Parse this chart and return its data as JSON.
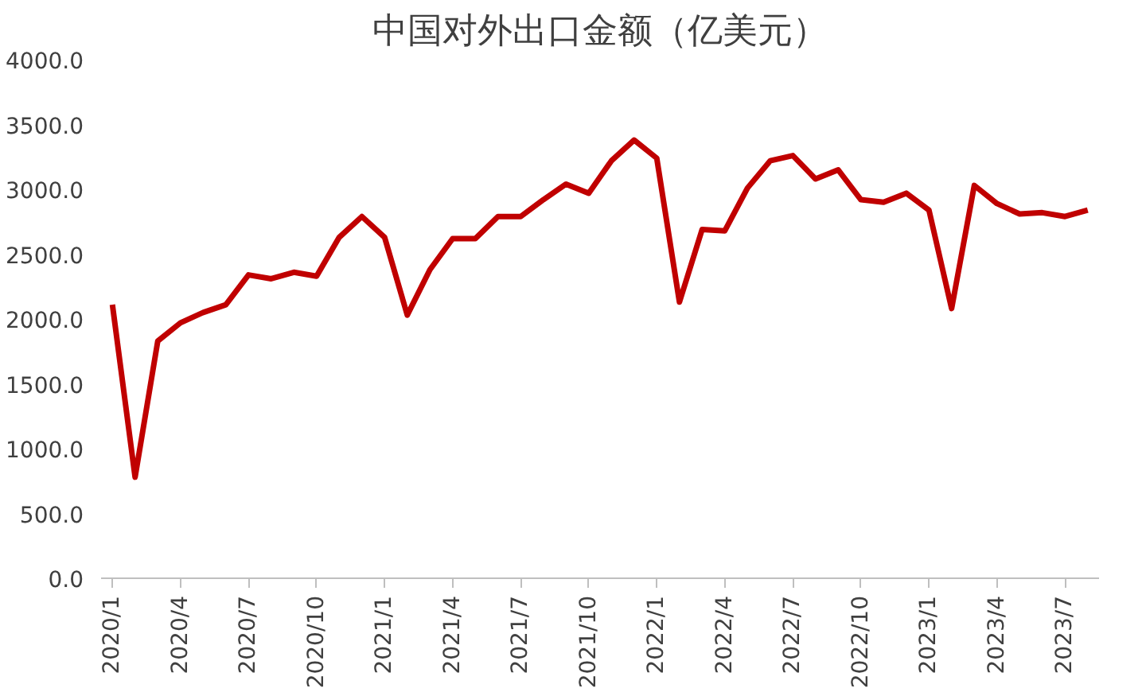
{
  "chart_data": {
    "type": "line",
    "title": "中国对外出口金额（亿美元）",
    "categories": [
      "2020/1",
      null,
      null,
      "2020/4",
      null,
      null,
      "2020/7",
      null,
      null,
      "2020/10",
      null,
      null,
      "2021/1",
      null,
      null,
      "2021/4",
      null,
      null,
      "2021/7",
      null,
      null,
      "2021/10",
      null,
      null,
      "2022/1",
      null,
      null,
      "2022/4",
      null,
      null,
      "2022/7",
      null,
      null,
      "2022/10",
      null,
      null,
      "2023/1",
      null,
      null,
      "2023/4",
      null,
      null,
      "2023/7",
      null
    ],
    "series": [
      {
        "color": "#c00000",
        "values": [
          2110,
          780,
          1830,
          1970,
          2050,
          2110,
          2340,
          2310,
          2360,
          2330,
          2630,
          2790,
          2630,
          2030,
          2380,
          2620,
          2620,
          2790,
          2790,
          2920,
          3040,
          2970,
          3220,
          3380,
          3240,
          2130,
          2690,
          2680,
          3010,
          3220,
          3260,
          3080,
          3150,
          2920,
          2900,
          2970,
          2840,
          2080,
          3030,
          2890,
          2810,
          2820,
          2790,
          2840
        ]
      }
    ],
    "ylim": [
      0,
      4000
    ],
    "yticks": [
      {
        "value": 0,
        "label": "0.0"
      },
      {
        "value": 500,
        "label": "500.0"
      },
      {
        "value": 1000,
        "label": "1000.0"
      },
      {
        "value": 1500,
        "label": "1500.0"
      },
      {
        "value": 2000,
        "label": "2000.0"
      },
      {
        "value": 2500,
        "label": "2500.0"
      },
      {
        "value": 3000,
        "label": "3000.0"
      },
      {
        "value": 3500,
        "label": "3500.0"
      },
      {
        "value": 4000,
        "label": "4000.0"
      }
    ],
    "grid": false,
    "marker": "none",
    "line_style": "solid"
  }
}
